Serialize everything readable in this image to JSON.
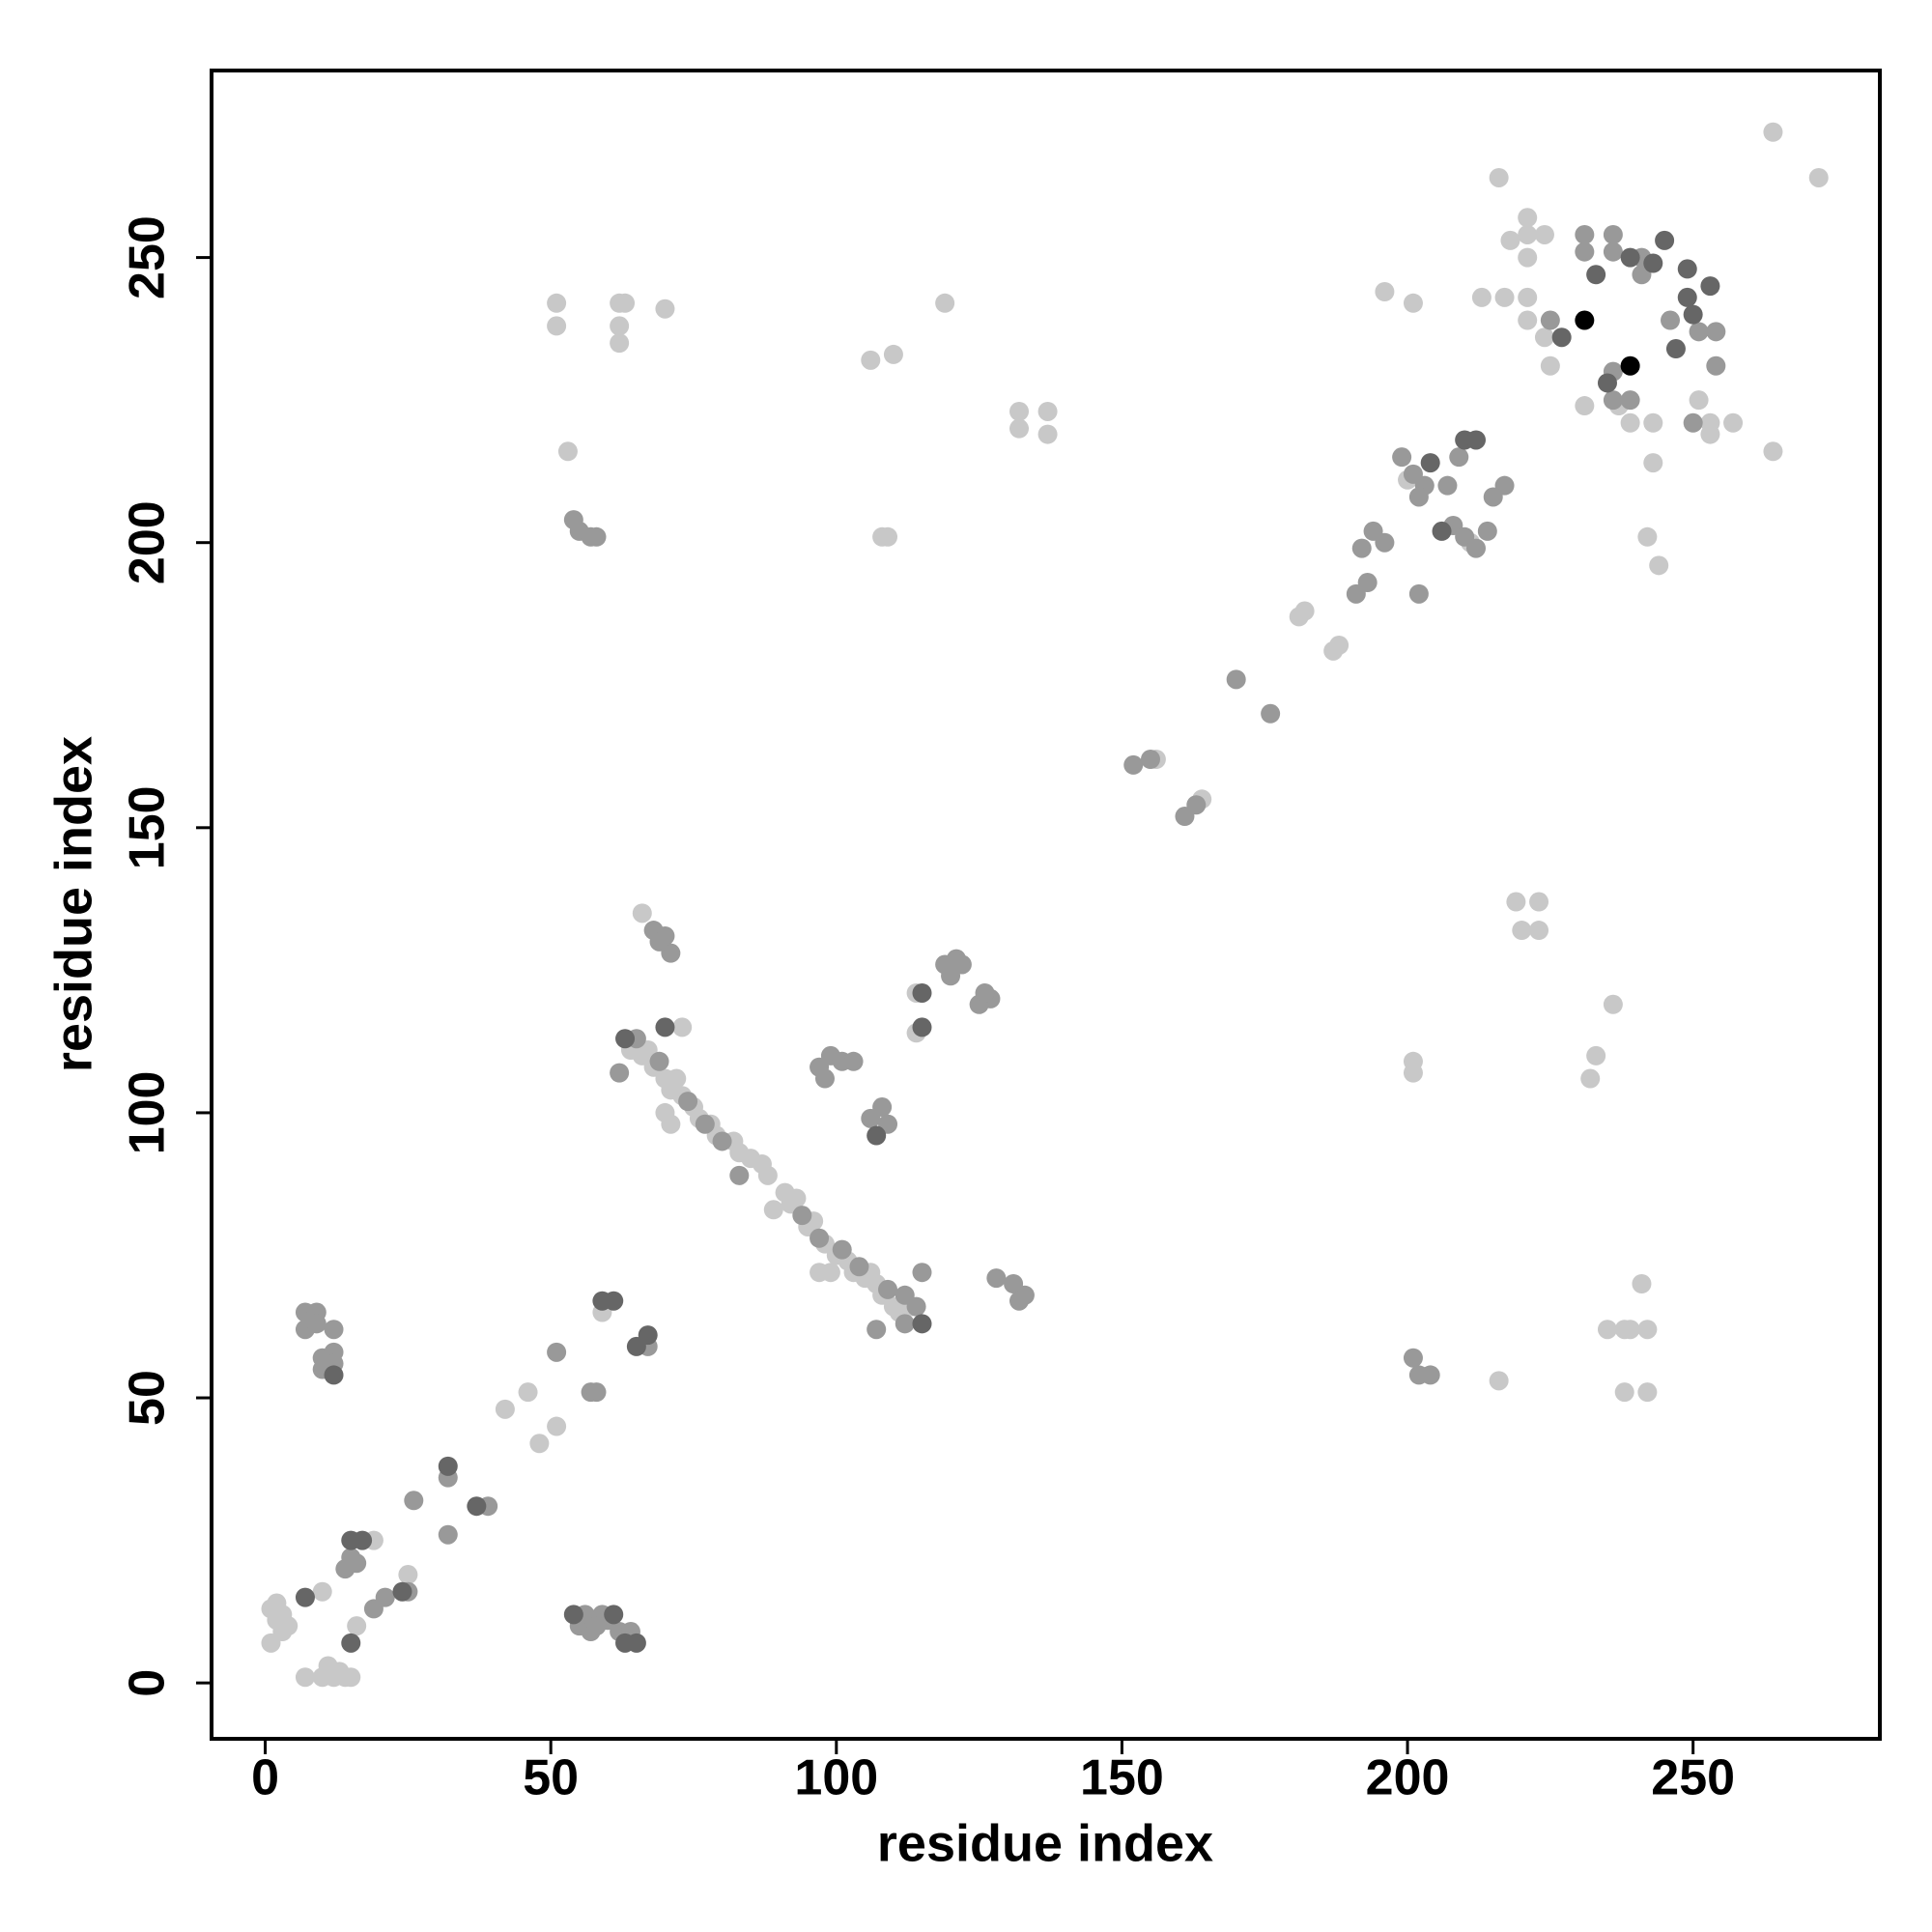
{
  "chart_data": {
    "type": "scatter",
    "xlabel": "residue index",
    "ylabel": "residue index",
    "xlim": [
      -9.4,
      282.7
    ],
    "ylim": [
      -9.8,
      282.8
    ],
    "xticks": [
      0,
      50,
      100,
      150,
      200,
      250
    ],
    "yticks": [
      0,
      50,
      100,
      150,
      200,
      250
    ],
    "grid": false,
    "series": [
      {
        "color": "#c8c8c8",
        "x": [
          1,
          2,
          3,
          4,
          1,
          2,
          3,
          7,
          10,
          11,
          12,
          13,
          14,
          15,
          10,
          16,
          19,
          25,
          42,
          46,
          48,
          51,
          59,
          73,
          114,
          114,
          66,
          53,
          51,
          51,
          62,
          63,
          62,
          62,
          70,
          106,
          110,
          119,
          132,
          137,
          132,
          137,
          108,
          109,
          156,
          164,
          181,
          182,
          187,
          188,
          196,
          201,
          200,
          211,
          216,
          235,
          238,
          239,
          242,
          241,
          238,
          242,
          201,
          201,
          219,
          223,
          220,
          223,
          236,
          233,
          232,
          216,
          264,
          272,
          264,
          218,
          221,
          221,
          224,
          221,
          213,
          217,
          221,
          221,
          225,
          224,
          231,
          239,
          243,
          243,
          242,
          244,
          251,
          253,
          257,
          253,
          237,
          89,
          64,
          66,
          67,
          68,
          70,
          71,
          72,
          73,
          75,
          76,
          78,
          79,
          82,
          83,
          85,
          87,
          88,
          91,
          92,
          93,
          95,
          96,
          98,
          99,
          100,
          102,
          103,
          105,
          106,
          107,
          108,
          110,
          111,
          113,
          97,
          70,
          71
        ],
        "values": [
          13,
          11,
          12,
          10,
          7,
          14,
          9,
          1,
          1,
          3,
          1,
          2,
          1,
          1,
          16,
          10,
          25,
          19,
          48,
          51,
          42,
          45,
          65,
          115,
          121,
          114,
          135,
          216,
          242,
          238,
          242,
          242,
          238,
          235,
          241,
          232,
          233,
          242,
          223,
          223,
          220,
          219,
          201,
          201,
          162,
          155,
          187,
          188,
          181,
          182,
          244,
          242,
          211,
          200,
          53,
          62,
          62,
          62,
          62,
          70,
          51,
          51,
          109,
          107,
          137,
          137,
          132,
          132,
          119,
          110,
          106,
          264,
          272,
          264,
          216,
          253,
          257,
          254,
          254,
          250,
          243,
          243,
          243,
          239,
          231,
          236,
          224,
          221,
          221,
          214,
          201,
          196,
          225,
          221,
          221,
          219,
          224,
          83,
          111,
          110,
          111,
          108,
          106,
          104,
          106,
          103,
          101,
          99,
          98,
          96,
          95,
          93,
          92,
          91,
          89,
          86,
          84,
          85,
          80,
          81,
          77,
          72,
          75,
          74,
          72,
          71,
          72,
          70,
          68,
          66,
          65,
          66,
          72,
          100,
          98
        ]
      },
      {
        "color": "#999999",
        "x": [
          14,
          15,
          16,
          19,
          21,
          25,
          26,
          32,
          32,
          39,
          51,
          57,
          58,
          67,
          7,
          9,
          7,
          9,
          12,
          10,
          12,
          10,
          12,
          56,
          55,
          57,
          59,
          60,
          58,
          62,
          64,
          201,
          202,
          204,
          62,
          107,
          114,
          115,
          83,
          68,
          70,
          71,
          69,
          97,
          99,
          101,
          103,
          98,
          106,
          108,
          109,
          119,
          121,
          122,
          120,
          125,
          127,
          126,
          128,
          131,
          133,
          132,
          54,
          55,
          57,
          58,
          152,
          155,
          161,
          163,
          170,
          176,
          191,
          193,
          192,
          194,
          196,
          199,
          201,
          203,
          202,
          202,
          209,
          207,
          208,
          210,
          212,
          214,
          217,
          215,
          231,
          236,
          231,
          236,
          225,
          236,
          236,
          239,
          251,
          254,
          254,
          250,
          246,
          241,
          241,
          65,
          69,
          74,
          77,
          80,
          94,
          97,
          101,
          104,
          109,
          112,
          112
        ],
        "values": [
          20,
          22,
          21,
          13,
          15,
          16,
          32,
          26,
          36,
          31,
          58,
          51,
          51,
          59,
          65,
          65,
          62,
          63,
          62,
          57,
          58,
          55,
          56,
          12,
          10,
          9,
          12,
          11,
          10,
          9,
          9,
          57,
          54,
          54,
          107,
          62,
          66,
          72,
          89,
          132,
          131,
          128,
          130,
          108,
          110,
          109,
          109,
          106,
          99,
          101,
          98,
          126,
          127,
          126,
          124,
          119,
          120,
          121,
          71,
          70,
          68,
          67,
          204,
          202,
          201,
          201,
          161,
          162,
          152,
          154,
          176,
          170,
          191,
          193,
          199,
          202,
          200,
          215,
          212,
          210,
          208,
          191,
          215,
          210,
          203,
          201,
          199,
          202,
          210,
          208,
          254,
          254,
          251,
          251,
          239,
          230,
          225,
          225,
          237,
          237,
          231,
          221,
          239,
          247,
          250,
          113,
          109,
          102,
          98,
          95,
          82,
          78,
          76,
          73,
          69,
          63,
          68
        ]
      },
      {
        "color": "#666666",
        "x": [
          7,
          15,
          15,
          17,
          24,
          32,
          37,
          59,
          61,
          65,
          67,
          12,
          54,
          61,
          63,
          65,
          63,
          70,
          115,
          107,
          115,
          115,
          204,
          210,
          212,
          206,
          245,
          253,
          247,
          233,
          227,
          239,
          243,
          235,
          249,
          250,
          249
        ],
        "values": [
          15,
          7,
          25,
          25,
          16,
          38,
          31,
          67,
          67,
          59,
          61,
          54,
          12,
          12,
          7,
          7,
          113,
          115,
          63,
          96,
          121,
          115,
          214,
          218,
          218,
          202,
          253,
          245,
          234,
          247,
          236,
          250,
          249,
          228,
          243,
          240,
          248
        ]
      },
      {
        "color": "#000000",
        "x": [
          231,
          239
        ],
        "values": [
          239,
          231
        ]
      }
    ]
  }
}
